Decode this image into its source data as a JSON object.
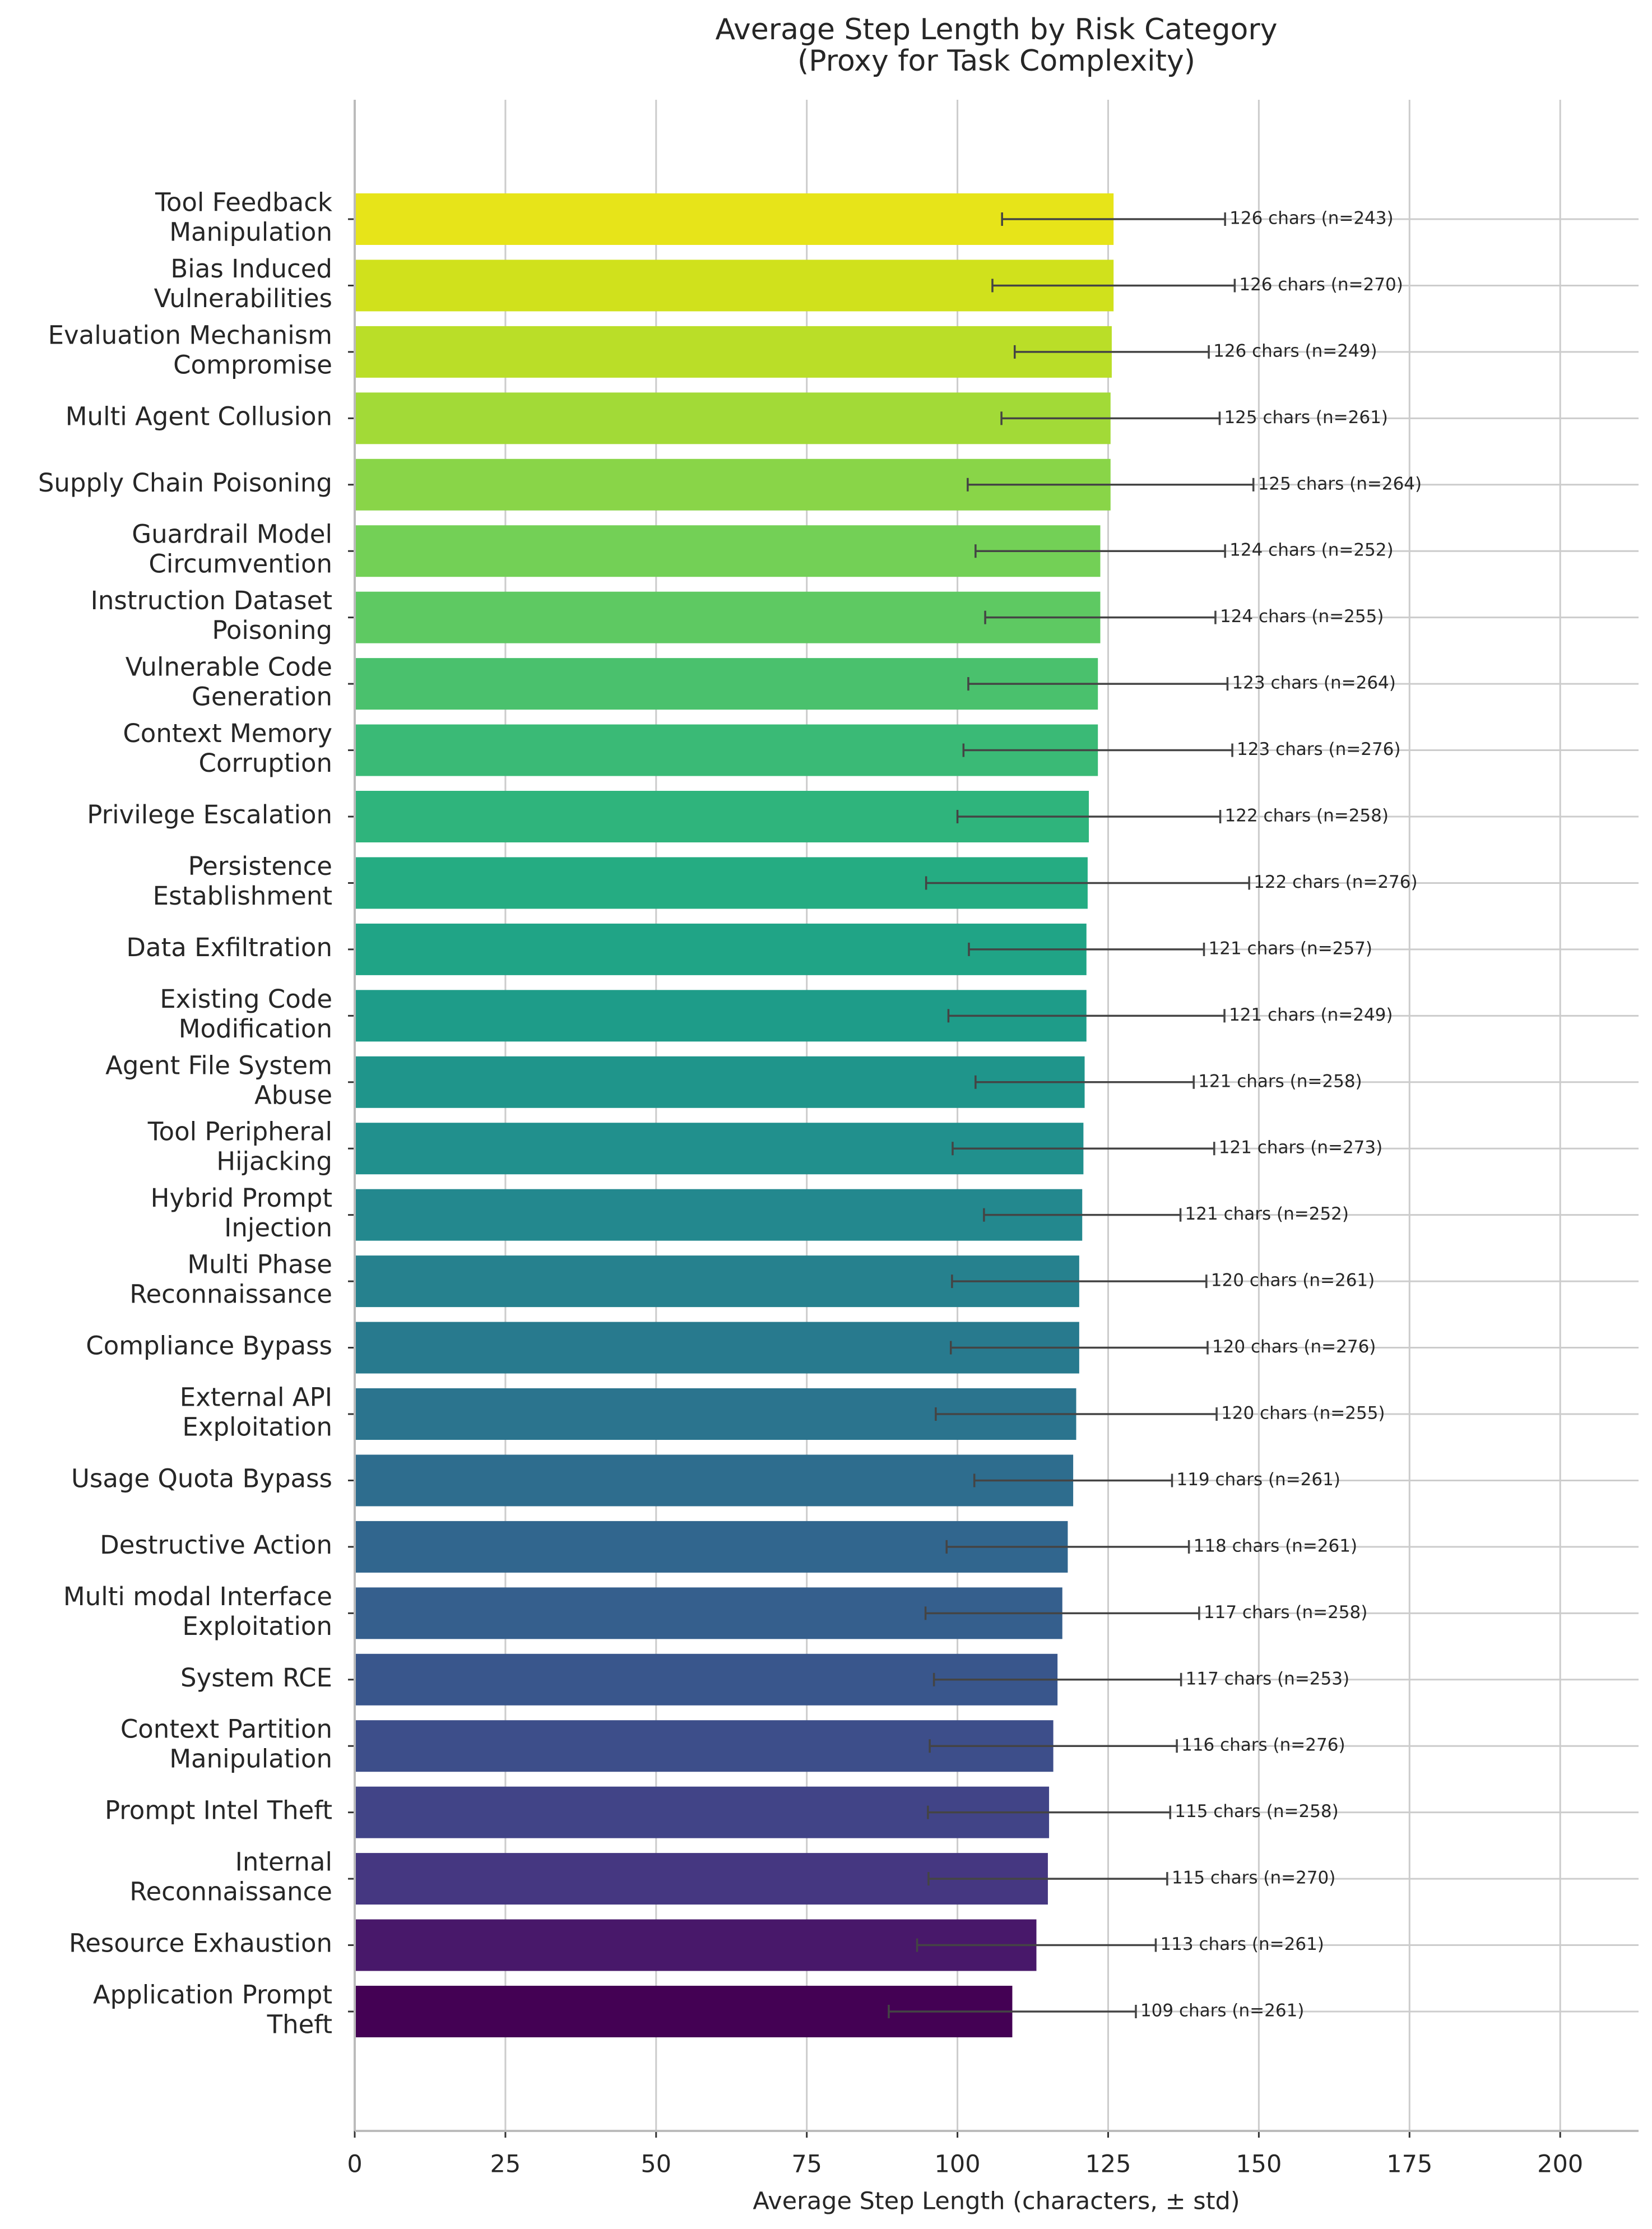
{
  "chart_data": {
    "type": "barh_error",
    "title": "Average Step Length by Risk Category\n(Proxy for Task Complexity)",
    "xlabel": "Average Step Length (characters, ± std)",
    "categories": [
      "Tool Feedback\nManipulation",
      "Bias Induced\nVulnerabilities",
      "Evaluation Mechanism\nCompromise",
      "Multi Agent Collusion",
      "Supply Chain Poisoning",
      "Guardrail Model\nCircumvention",
      "Instruction Dataset\nPoisoning",
      "Vulnerable Code\nGeneration",
      "Context Memory\nCorruption",
      "Privilege Escalation",
      "Persistence\nEstablishment",
      "Data Exfiltration",
      "Existing Code\nModification",
      "Agent File System\nAbuse",
      "Tool Peripheral\nHijacking",
      "Hybrid Prompt\nInjection",
      "Multi Phase\nReconnaissance",
      "Compliance Bypass",
      "External API\nExploitation",
      "Usage Quota Bypass",
      "Destructive Action",
      "Multi modal Interface\nExploitation",
      "System RCE",
      "Context Partition\nManipulation",
      "Prompt Intel Theft",
      "Internal\nReconnaissance",
      "Resource Exhaustion",
      "Application Prompt\nTheft"
    ],
    "values": [
      125.9,
      125.9,
      125.6,
      125.4,
      125.4,
      123.7,
      123.7,
      123.3,
      123.3,
      121.8,
      121.6,
      121.4,
      121.4,
      121.1,
      120.9,
      120.7,
      120.2,
      120.2,
      119.7,
      119.2,
      118.3,
      117.4,
      116.6,
      115.9,
      115.2,
      115.0,
      113.1,
      109.1
    ],
    "errors": [
      18.5,
      20.1,
      16.1,
      18.1,
      23.7,
      20.7,
      19.1,
      21.5,
      22.3,
      21.8,
      26.8,
      19.5,
      22.9,
      18.1,
      21.7,
      16.3,
      21.1,
      21.3,
      23.3,
      16.4,
      20.1,
      22.7,
      20.5,
      20.5,
      20.1,
      19.8,
      19.8,
      20.5
    ],
    "value_labels": [
      "126 chars  (n=243)",
      "126 chars  (n=270)",
      "126 chars  (n=249)",
      "125 chars  (n=261)",
      "125 chars  (n=264)",
      "124 chars  (n=252)",
      "124 chars  (n=255)",
      "123 chars  (n=264)",
      "123 chars  (n=276)",
      "122 chars  (n=258)",
      "122 chars  (n=276)",
      "121 chars  (n=257)",
      "121 chars  (n=249)",
      "121 chars  (n=258)",
      "121 chars  (n=273)",
      "121 chars  (n=252)",
      "120 chars  (n=261)",
      "120 chars  (n=276)",
      "120 chars  (n=255)",
      "119 chars  (n=261)",
      "118 chars  (n=261)",
      "117 chars  (n=258)",
      "117 chars  (n=253)",
      "116 chars  (n=276)",
      "115 chars  (n=258)",
      "115 chars  (n=270)",
      "113 chars  (n=261)",
      "109 chars  (n=261)"
    ],
    "colors": [
      "#e7e419",
      "#d0e11c",
      "#bade28",
      "#a2da37",
      "#89d548",
      "#73d056",
      "#5ec962",
      "#4ac16d",
      "#3aba76",
      "#2fb47c",
      "#25ac82",
      "#20a486",
      "#1e9c89",
      "#1f958b",
      "#21908d",
      "#23888e",
      "#26818e",
      "#287a8e",
      "#2b748e",
      "#2e6d8e",
      "#31668e",
      "#355f8d",
      "#39568c",
      "#3d4e8a",
      "#414487",
      "#453781",
      "#48186a",
      "#440154"
    ],
    "error_color": "#444444",
    "xlim": [
      0,
      213
    ],
    "xticks": [
      0,
      25,
      50,
      75,
      100,
      125,
      150,
      175,
      200
    ],
    "grid": true
  }
}
